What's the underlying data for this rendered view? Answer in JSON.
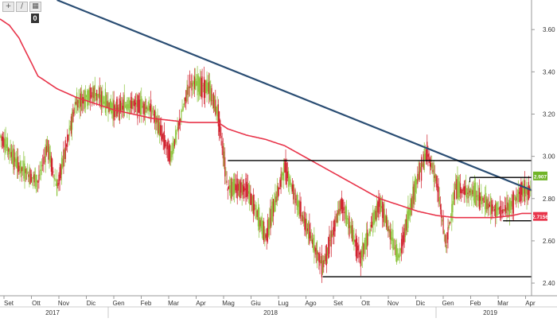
{
  "toolbar": {
    "buttons": [
      {
        "icon": "crosshair-icon",
        "glyph": "+"
      },
      {
        "icon": "pencil-icon",
        "glyph": "∕"
      },
      {
        "icon": "grid-icon",
        "glyph": "▦"
      }
    ],
    "count": "0"
  },
  "chart_data": {
    "type": "candlestick",
    "title": "",
    "xlabel": "",
    "ylabel": "",
    "ylim": [
      2.34,
      3.74
    ],
    "grid": false,
    "y_ticks": [
      "2.40",
      "2.60",
      "2.80",
      "3.00",
      "3.20",
      "3.40",
      "3.60"
    ],
    "x_ticks": [
      "Set",
      "Ott",
      "Nov",
      "Dic",
      "Gen",
      "Feb",
      "Mar",
      "Apr",
      "Mag",
      "Giu",
      "Lug",
      "Ago",
      "Set",
      "Ott",
      "Nov",
      "Dic",
      "Gen",
      "Feb",
      "Mar",
      "Apr"
    ],
    "year_labels": [
      "2017",
      "2018",
      "2019"
    ],
    "price_anchors": [
      [
        0,
        3.1
      ],
      [
        2,
        2.95
      ],
      [
        4,
        2.88
      ],
      [
        5,
        3.05
      ],
      [
        6,
        2.85
      ],
      [
        8,
        3.25
      ],
      [
        10,
        3.3
      ],
      [
        12,
        3.22
      ],
      [
        14,
        3.25
      ],
      [
        16,
        3.22
      ],
      [
        18,
        3.0
      ],
      [
        20,
        3.35
      ],
      [
        22,
        3.32
      ],
      [
        23,
        3.2
      ],
      [
        24,
        2.85
      ],
      [
        26,
        2.85
      ],
      [
        28,
        2.62
      ],
      [
        30,
        2.95
      ],
      [
        32,
        2.7
      ],
      [
        34,
        2.48
      ],
      [
        36,
        2.78
      ],
      [
        38,
        2.52
      ],
      [
        40,
        2.78
      ],
      [
        42,
        2.52
      ],
      [
        44,
        2.9
      ],
      [
        45,
        3.02
      ],
      [
        46,
        2.88
      ],
      [
        47,
        2.58
      ],
      [
        48,
        2.85
      ],
      [
        50,
        2.82
      ],
      [
        52,
        2.75
      ],
      [
        53,
        2.74
      ],
      [
        54,
        2.78
      ],
      [
        55,
        2.84
      ]
    ],
    "moving_average": [
      [
        0,
        3.65
      ],
      [
        1,
        3.62
      ],
      [
        2,
        3.56
      ],
      [
        3,
        3.47
      ],
      [
        4,
        3.38
      ],
      [
        6,
        3.32
      ],
      [
        8,
        3.28
      ],
      [
        10,
        3.25
      ],
      [
        12,
        3.22
      ],
      [
        14,
        3.2
      ],
      [
        16,
        3.18
      ],
      [
        18,
        3.17
      ],
      [
        20,
        3.16
      ],
      [
        22,
        3.16
      ],
      [
        23,
        3.16
      ],
      [
        24,
        3.13
      ],
      [
        26,
        3.1
      ],
      [
        28,
        3.08
      ],
      [
        30,
        3.05
      ],
      [
        32,
        3.0
      ],
      [
        34,
        2.95
      ],
      [
        36,
        2.9
      ],
      [
        38,
        2.85
      ],
      [
        40,
        2.8
      ],
      [
        42,
        2.77
      ],
      [
        44,
        2.74
      ],
      [
        46,
        2.72
      ],
      [
        48,
        2.71
      ],
      [
        50,
        2.71
      ],
      [
        52,
        2.71
      ],
      [
        54,
        2.72
      ],
      [
        55,
        2.73
      ]
    ],
    "trend_lines": [
      {
        "name": "downtrend",
        "from": [
          6,
          3.74
        ],
        "to": [
          56,
          2.84
        ],
        "color": "#2a4d73"
      },
      {
        "name": "resistance",
        "from": [
          24,
          2.98
        ],
        "to": [
          56,
          2.98
        ],
        "color": "#000000"
      },
      {
        "name": "support",
        "from": [
          34,
          2.43
        ],
        "to": [
          56,
          2.43
        ],
        "color": "#000000"
      },
      {
        "name": "range-top",
        "from": [
          49.5,
          2.9
        ],
        "to": [
          56,
          2.9
        ],
        "color": "#000000"
      },
      {
        "name": "range-bottom",
        "from": [
          53,
          2.695
        ],
        "to": [
          56,
          2.695
        ],
        "color": "#000000"
      }
    ],
    "price_tags": [
      {
        "label": "2.907",
        "value": 2.907,
        "color": "#70b428"
      },
      {
        "label": "2.7156",
        "value": 2.7156,
        "color": "#e8344a"
      }
    ],
    "colors": {
      "up": "#8cc43c",
      "down": "#d0202c",
      "moving_average": "#e8344a",
      "downtrend": "#2a4d73"
    }
  }
}
